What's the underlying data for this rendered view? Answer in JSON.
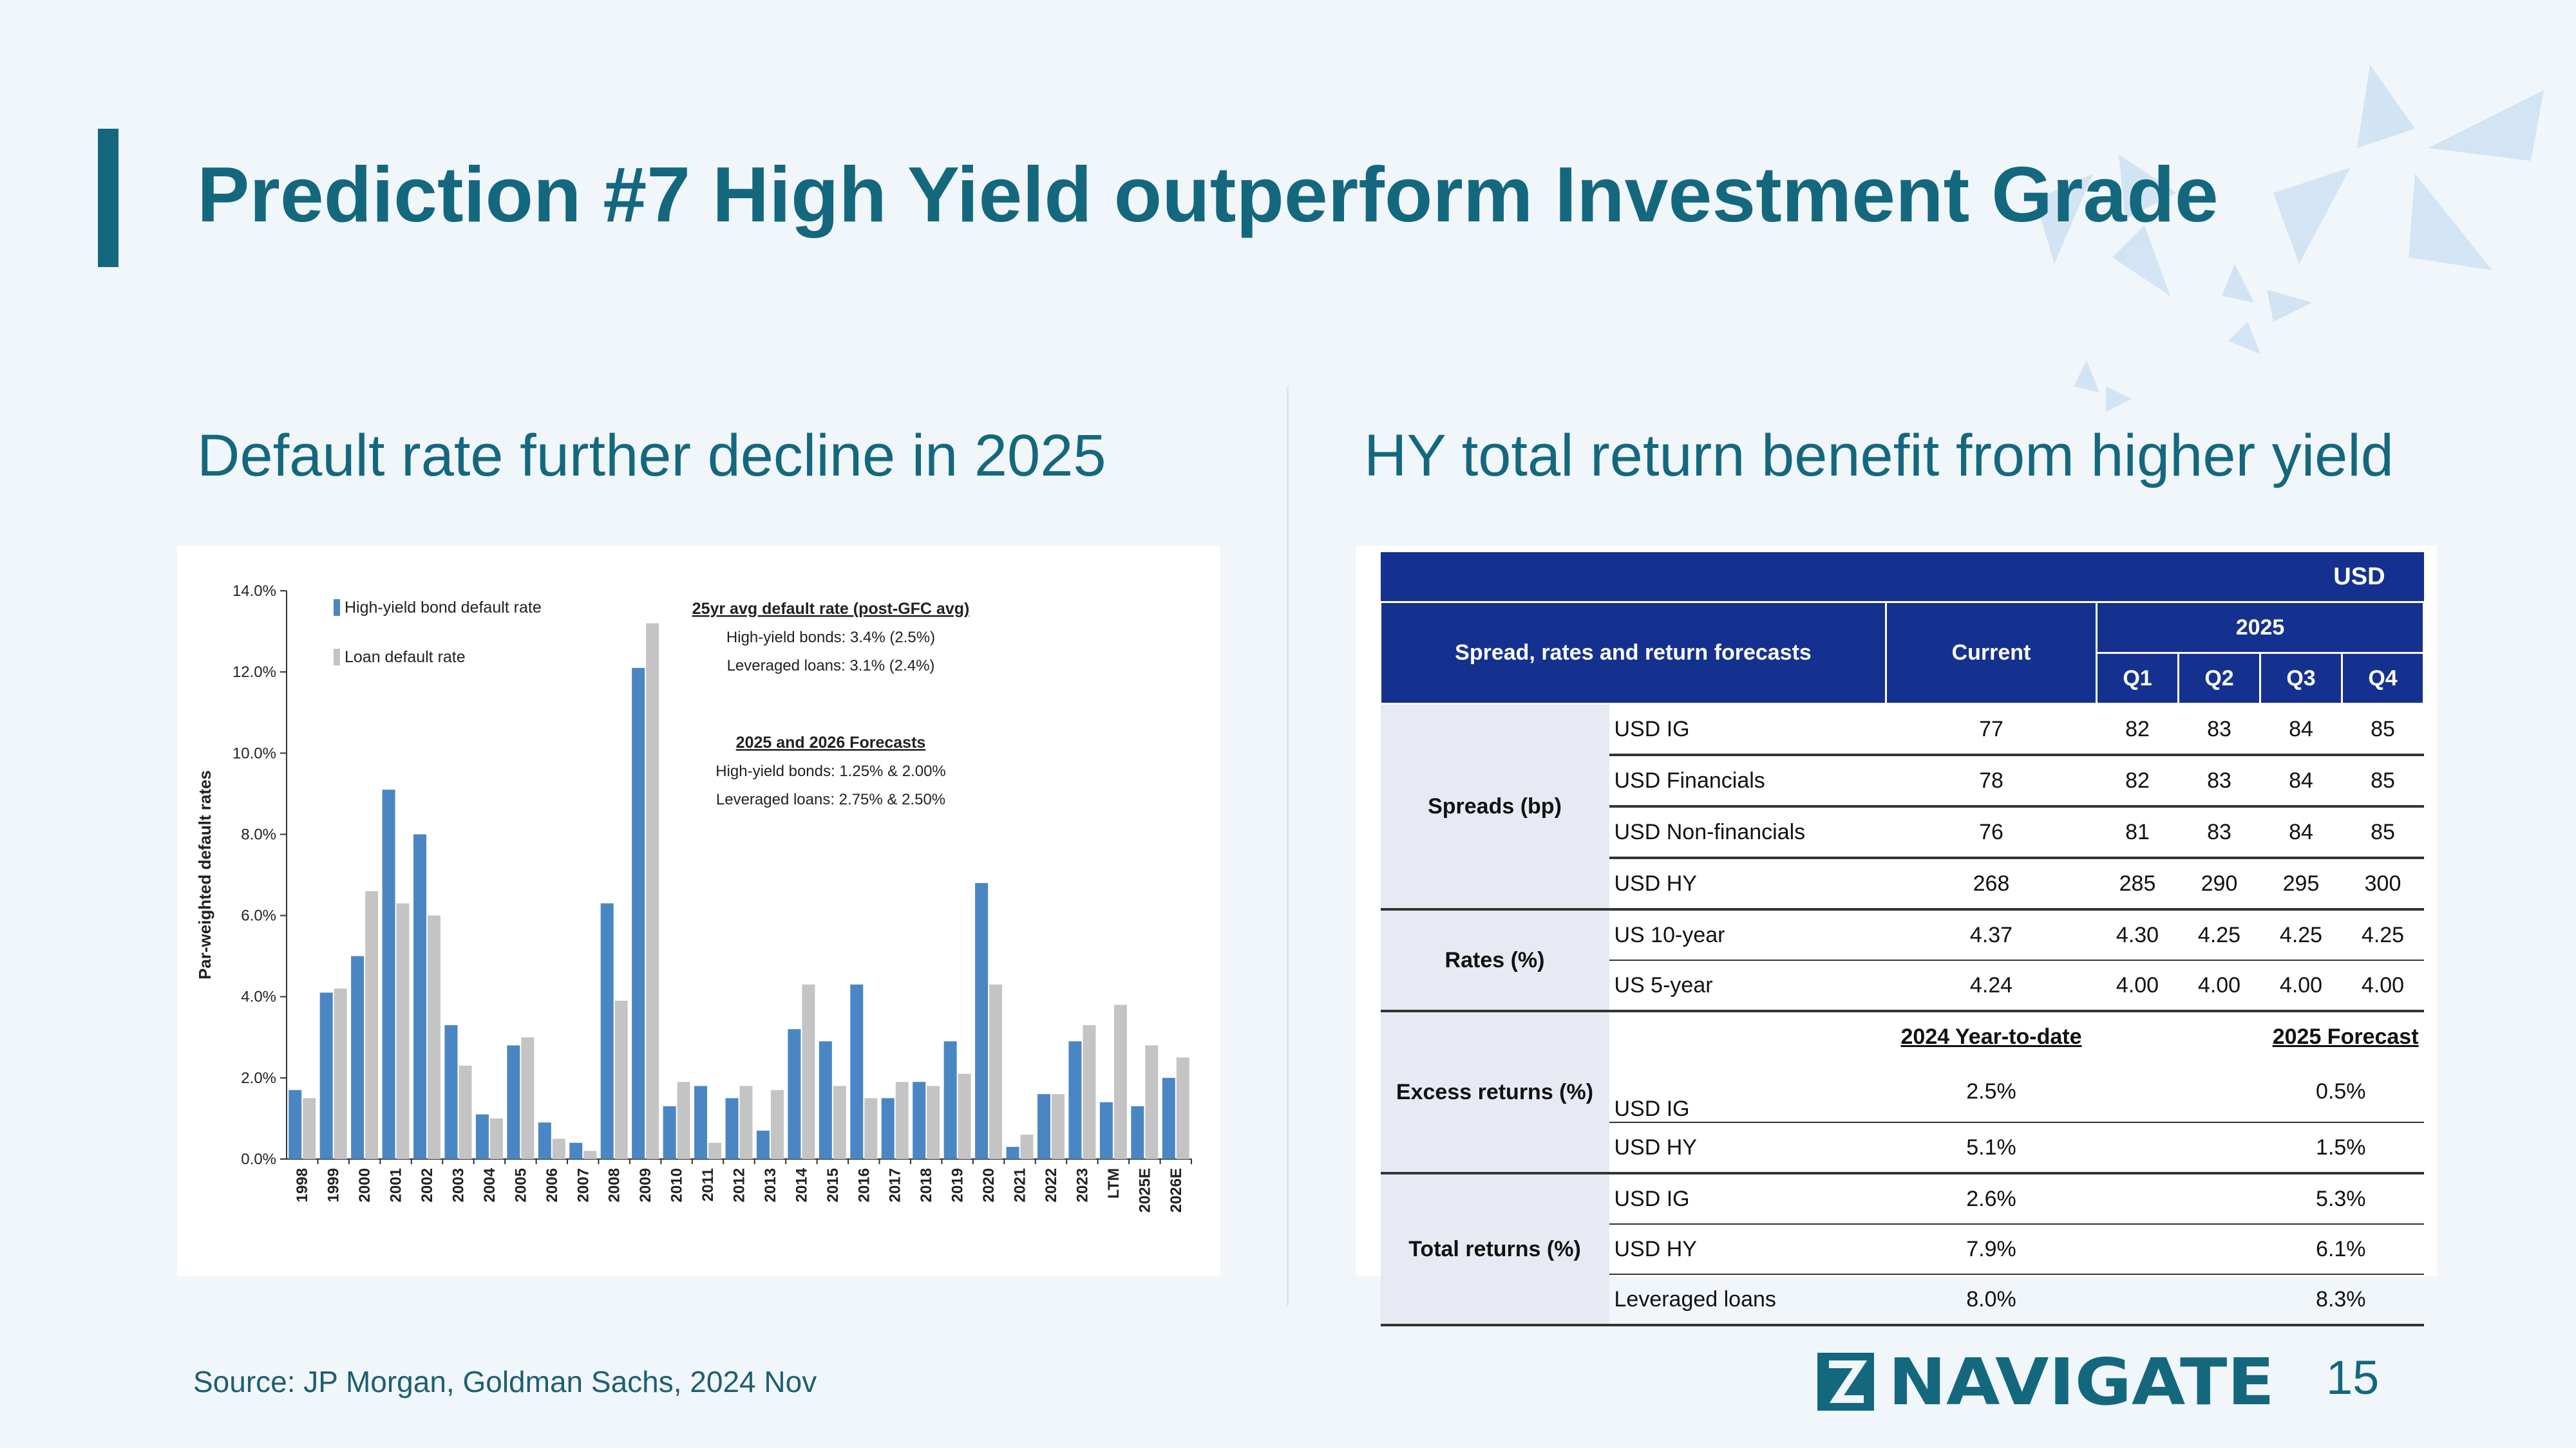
{
  "title": "Prediction #7 High Yield outperform Investment Grade",
  "left_subtitle": "Default rate further decline in 2025",
  "right_subtitle": "HY total return benefit from higher yield",
  "footer": {
    "source": "Source:  JP Morgan, Goldman Sachs, 2024 Nov",
    "page_number": "15",
    "logo_text": "NAVIGATE"
  },
  "colors": {
    "accent": "#14687e",
    "hy_bar": "#4a86c3",
    "loan_bar": "#c4c4c4",
    "table_header": "#15318f",
    "background": "#f1f6fa"
  },
  "chart_data": {
    "type": "bar",
    "ylabel": "Par-weighted default rates",
    "ylim": [
      0,
      14
    ],
    "yticks": [
      "0.0%",
      "2.0%",
      "4.0%",
      "6.0%",
      "8.0%",
      "10.0%",
      "12.0%",
      "14.0%"
    ],
    "categories": [
      "1998",
      "1999",
      "2000",
      "2001",
      "2002",
      "2003",
      "2004",
      "2005",
      "2006",
      "2007",
      "2008",
      "2009",
      "2010",
      "2011",
      "2012",
      "2013",
      "2014",
      "2015",
      "2016",
      "2017",
      "2018",
      "2019",
      "2020",
      "2021",
      "2022",
      "2023",
      "LTM",
      "2025E",
      "2026E"
    ],
    "series": [
      {
        "name": "High-yield bond default rate",
        "values": [
          1.7,
          4.1,
          5.0,
          9.1,
          8.0,
          3.3,
          1.1,
          2.8,
          0.9,
          0.4,
          6.3,
          12.1,
          1.3,
          1.8,
          1.5,
          0.7,
          3.2,
          2.9,
          4.3,
          1.5,
          1.9,
          2.9,
          6.8,
          0.3,
          1.6,
          2.9,
          1.4,
          1.3,
          2.0
        ]
      },
      {
        "name": "Loan default rate",
        "values": [
          1.5,
          4.2,
          6.6,
          6.3,
          6.0,
          2.3,
          1.0,
          3.0,
          0.5,
          0.2,
          3.9,
          13.2,
          1.9,
          0.4,
          1.8,
          1.7,
          4.3,
          1.8,
          1.5,
          1.9,
          1.8,
          2.1,
          4.3,
          0.6,
          1.6,
          3.3,
          3.8,
          2.8,
          2.5
        ]
      }
    ],
    "annotations": [
      {
        "heading": "25yr avg default rate (post-GFC avg)",
        "lines": [
          "High-yield bonds: 3.4% (2.5%)",
          "Leveraged loans: 3.1% (2.4%)"
        ]
      },
      {
        "heading": "2025 and 2026 Forecasts",
        "lines": [
          "High-yield bonds: 1.25%  &  2.00%",
          "Leveraged loans: 2.75%  &  2.50%"
        ]
      }
    ]
  },
  "table": {
    "header_top": "USD",
    "col_spread": "Spread, rates and return forecasts",
    "col_current": "Current",
    "col_year": "2025",
    "quarters": [
      "Q1",
      "Q2",
      "Q3",
      "Q4"
    ],
    "spreads": {
      "label": "Spreads (bp)",
      "rows": [
        {
          "name": "USD IG",
          "current": "77",
          "q": [
            "82",
            "83",
            "84",
            "85"
          ]
        },
        {
          "name": "USD Financials",
          "current": "78",
          "q": [
            "82",
            "83",
            "84",
            "85"
          ]
        },
        {
          "name": "USD Non-financials",
          "current": "76",
          "q": [
            "81",
            "83",
            "84",
            "85"
          ]
        },
        {
          "name": "USD HY",
          "current": "268",
          "q": [
            "285",
            "290",
            "295",
            "300"
          ]
        }
      ]
    },
    "rates": {
      "label": "Rates (%)",
      "rows": [
        {
          "name": "US 10-year",
          "current": "4.37",
          "q": [
            "4.30",
            "4.25",
            "4.25",
            "4.25"
          ]
        },
        {
          "name": "US 5-year",
          "current": "4.24",
          "q": [
            "4.00",
            "4.00",
            "4.00",
            "4.00"
          ]
        }
      ]
    },
    "excess": {
      "label": "Excess returns (%)",
      "ytd_header": "2024 Year-to-date",
      "forecast_header": "2025 Forecast",
      "rows": [
        {
          "name": "USD IG",
          "ytd": "2.5%",
          "fcst": "0.5%"
        },
        {
          "name": "USD HY",
          "ytd": "5.1%",
          "fcst": "1.5%"
        }
      ]
    },
    "total": {
      "label": "Total returns (%)",
      "rows": [
        {
          "name": "USD IG",
          "ytd": "2.6%",
          "fcst": "5.3%"
        },
        {
          "name": "USD HY",
          "ytd": "7.9%",
          "fcst": "6.1%"
        },
        {
          "name": "Leveraged loans",
          "ytd": "8.0%",
          "fcst": "8.3%"
        }
      ]
    }
  }
}
